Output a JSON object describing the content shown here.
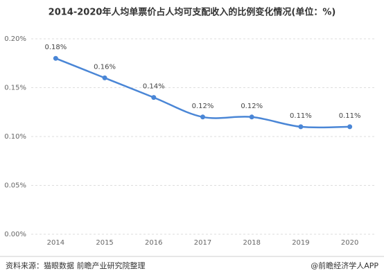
{
  "chart_data": {
    "type": "line",
    "title": "2014-2020年人均单票价占人均可支配收入的比例变化情况(单位：%)",
    "categories": [
      "2014",
      "2015",
      "2016",
      "2017",
      "2018",
      "2019",
      "2020"
    ],
    "series": [
      {
        "color": "#4a86d6",
        "values": [
          0.18,
          0.16,
          0.14,
          0.12,
          0.12,
          0.11,
          0.11
        ],
        "value_labels": [
          "0.18%",
          "0.16%",
          "0.14%",
          "0.12%",
          "0.12%",
          "0.11%",
          "0.11%"
        ]
      }
    ],
    "ylim": [
      0,
      0.2
    ],
    "yticks": [
      {
        "value": 0,
        "label": "0.00%"
      },
      {
        "value": 0.05,
        "label": "0.05%"
      },
      {
        "value": 0.1,
        "label": "0.10%"
      },
      {
        "value": 0.15,
        "label": "0.15%"
      },
      {
        "value": 0.2,
        "label": "0.20%"
      }
    ],
    "grid": true,
    "source": "资料来源：猫眼数据 前瞻产业研究院整理",
    "credit": "@前瞻经济学人APP"
  }
}
